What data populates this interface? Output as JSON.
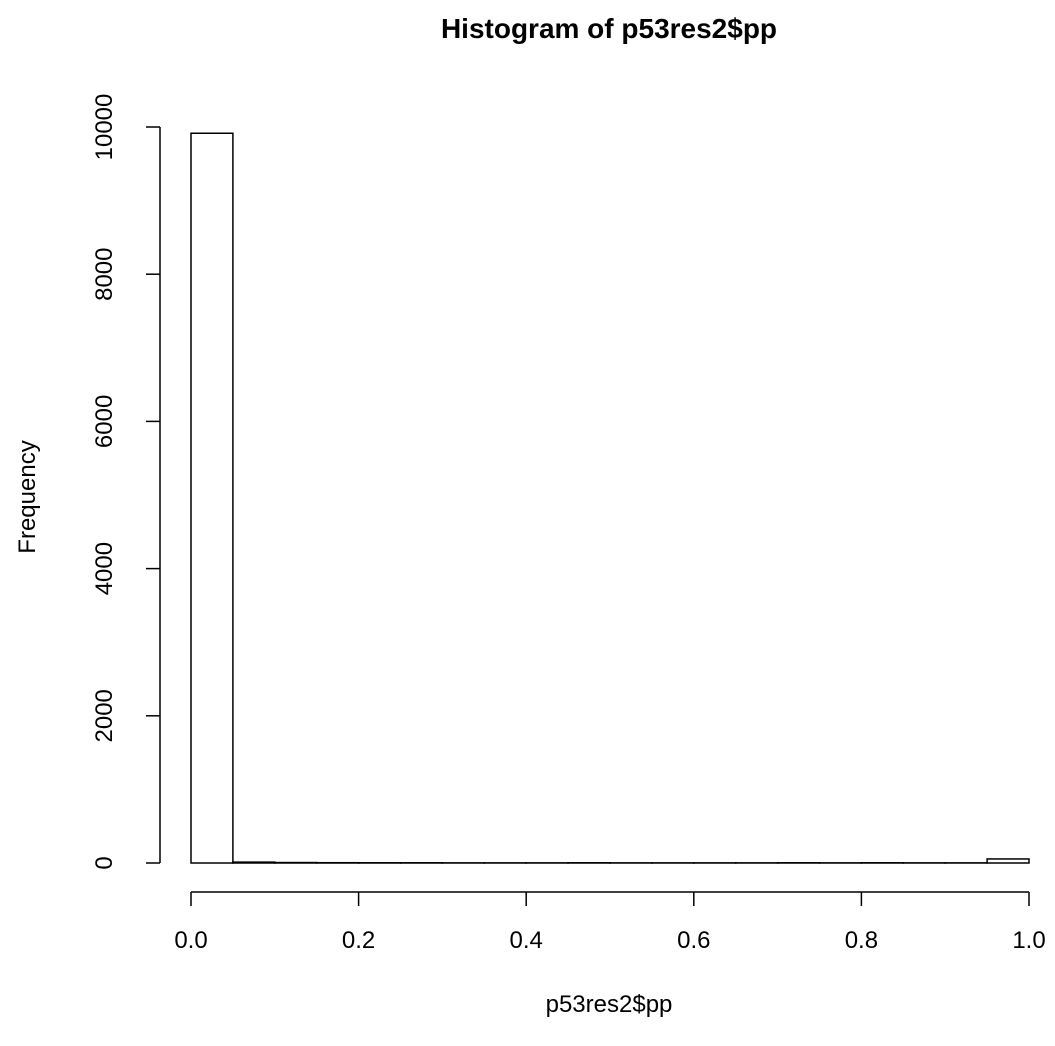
{
  "chart_data": {
    "type": "bar",
    "title": "Histogram of p53res2$pp",
    "xlabel": "p53res2$pp",
    "ylabel": "Frequency",
    "xlim": [
      0,
      1
    ],
    "ylim": [
      0,
      10000
    ],
    "x_ticks": [
      "0.0",
      "0.2",
      "0.4",
      "0.6",
      "0.8",
      "1.0"
    ],
    "x_tick_values": [
      0,
      0.2,
      0.4,
      0.6,
      0.8,
      1.0
    ],
    "y_ticks": [
      "0",
      "2000",
      "4000",
      "6000",
      "8000",
      "10000"
    ],
    "y_tick_values": [
      0,
      2000,
      4000,
      6000,
      8000,
      10000
    ],
    "bin_edges": [
      0,
      0.05,
      0.1,
      0.15,
      0.2,
      0.25,
      0.3,
      0.35,
      0.4,
      0.45,
      0.5,
      0.55,
      0.6,
      0.65,
      0.7,
      0.75,
      0.8,
      0.85,
      0.9,
      0.95,
      1.0
    ],
    "values": [
      9915,
      12,
      6,
      4,
      3,
      3,
      2,
      2,
      2,
      3,
      2,
      2,
      2,
      2,
      3,
      2,
      3,
      2,
      2,
      55
    ],
    "grid": false,
    "legend": "none",
    "bar_fill": "#ffffff",
    "bar_stroke": "#000000"
  }
}
